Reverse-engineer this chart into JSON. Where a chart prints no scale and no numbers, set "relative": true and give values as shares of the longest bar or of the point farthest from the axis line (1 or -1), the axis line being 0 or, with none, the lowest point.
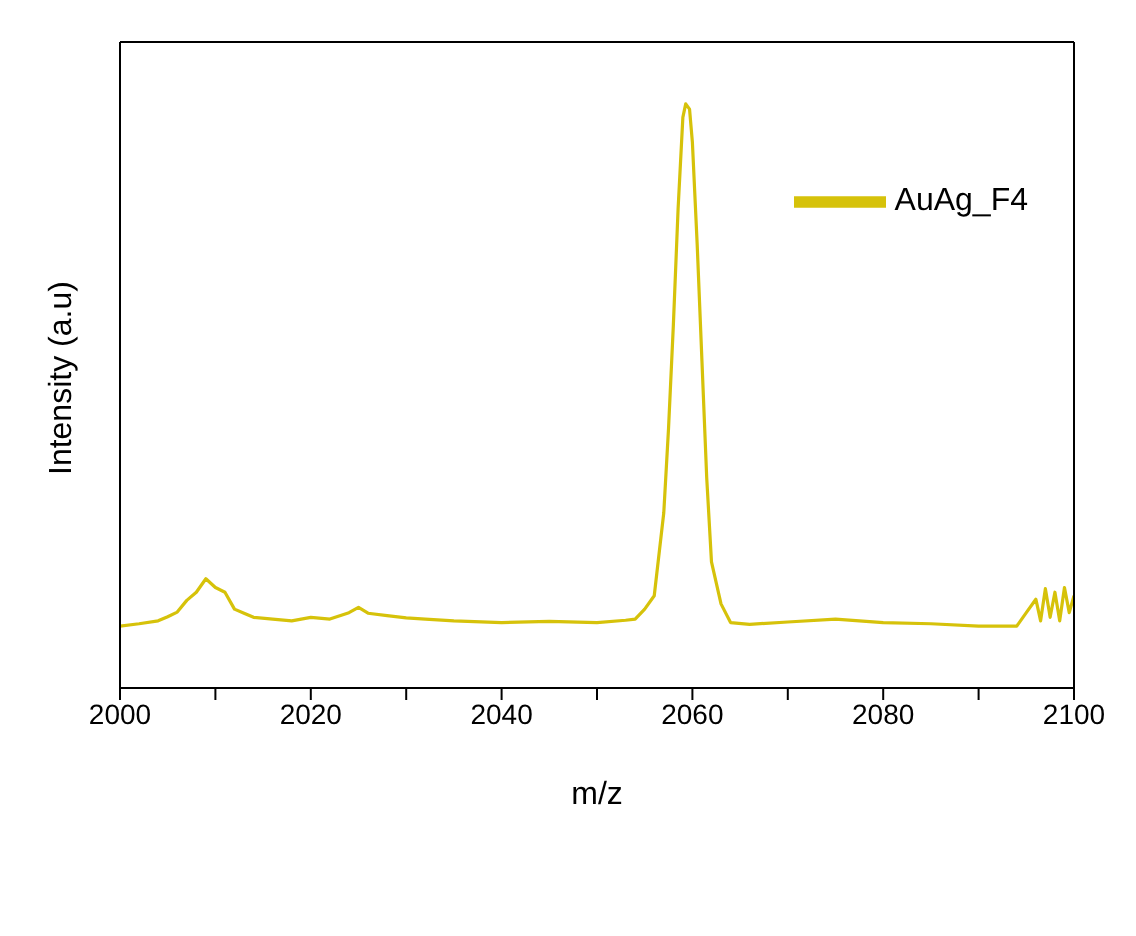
{
  "chart_data": {
    "type": "line",
    "xlabel": "m/z",
    "ylabel": "Intensity (a.u)",
    "relative": true,
    "xlim": [
      2000,
      2100
    ],
    "xticks": [
      2000,
      {
        "value": 2010,
        "label": null
      },
      2020,
      {
        "value": 2030,
        "label": null
      },
      2040,
      {
        "value": 2050,
        "label": null
      },
      2060,
      {
        "value": 2070,
        "label": null
      },
      2080,
      {
        "value": 2090,
        "label": null
      },
      2100
    ],
    "legend": "top right",
    "marker": "none",
    "line_style": "solid",
    "series": [
      {
        "name": "AuAg_F4",
        "color": "#d6c20a",
        "x": [
          2000,
          2002,
          2004,
          2005,
          2006,
          2007,
          2008,
          2009,
          2010,
          2011,
          2012,
          2013,
          2014,
          2016,
          2018,
          2020,
          2022,
          2024,
          2025,
          2026,
          2028,
          2030,
          2032,
          2035,
          2040,
          2045,
          2050,
          2053,
          2054,
          2055,
          2056,
          2057,
          2057.5,
          2058,
          2058.5,
          2059,
          2059.3,
          2059.7,
          2060,
          2060.5,
          2061,
          2061.5,
          2062,
          2063,
          2064,
          2066,
          2070,
          2075,
          2080,
          2085,
          2090,
          2094,
          2095,
          2096,
          2096.5,
          2097,
          2097.5,
          2098,
          2098.5,
          2099,
          2099.5,
          2100
        ],
        "values": [
          0.106,
          0.11,
          0.115,
          0.122,
          0.13,
          0.15,
          0.164,
          0.187,
          0.172,
          0.164,
          0.135,
          0.128,
          0.121,
          0.118,
          0.115,
          0.121,
          0.118,
          0.129,
          0.138,
          0.128,
          0.124,
          0.12,
          0.118,
          0.115,
          0.112,
          0.114,
          0.112,
          0.116,
          0.118,
          0.135,
          0.158,
          0.3,
          0.445,
          0.62,
          0.82,
          0.977,
          1.0,
          0.991,
          0.934,
          0.76,
          0.56,
          0.36,
          0.216,
          0.144,
          0.112,
          0.109,
          0.113,
          0.118,
          0.112,
          0.11,
          0.106,
          0.106,
          0.129,
          0.152,
          0.115,
          0.17,
          0.121,
          0.164,
          0.115,
          0.172,
          0.129,
          0.158
        ]
      }
    ]
  }
}
